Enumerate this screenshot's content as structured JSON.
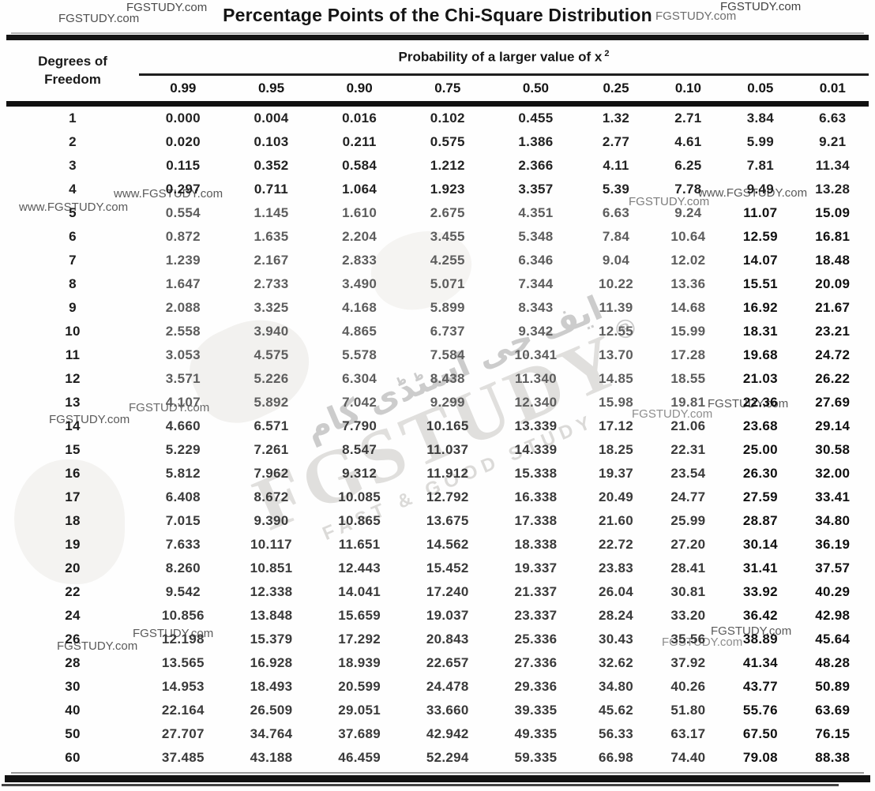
{
  "title": "Percentage Points of the Chi-Square Distribution",
  "table": {
    "row_header_line1": "Degrees of",
    "row_header_line2": "Freedom",
    "group_header": "Probability of a larger value of x",
    "group_header_sup": "2",
    "columns": [
      "0.99",
      "0.95",
      "0.90",
      "0.75",
      "0.50",
      "0.25",
      "0.10",
      "0.05",
      "0.01"
    ],
    "rows": [
      {
        "df": "1",
        "values": [
          "0.000",
          "0.004",
          "0.016",
          "0.102",
          "0.455",
          "1.32",
          "2.71",
          "3.84",
          "6.63"
        ]
      },
      {
        "df": "2",
        "values": [
          "0.020",
          "0.103",
          "0.211",
          "0.575",
          "1.386",
          "2.77",
          "4.61",
          "5.99",
          "9.21"
        ]
      },
      {
        "df": "3",
        "values": [
          "0.115",
          "0.352",
          "0.584",
          "1.212",
          "2.366",
          "4.11",
          "6.25",
          "7.81",
          "11.34"
        ]
      },
      {
        "df": "4",
        "values": [
          "0.297",
          "0.711",
          "1.064",
          "1.923",
          "3.357",
          "5.39",
          "7.78",
          "9.49",
          "13.28"
        ]
      },
      {
        "df": "5",
        "values": [
          "0.554",
          "1.145",
          "1.610",
          "2.675",
          "4.351",
          "6.63",
          "9.24",
          "11.07",
          "15.09"
        ]
      },
      {
        "df": "6",
        "values": [
          "0.872",
          "1.635",
          "2.204",
          "3.455",
          "5.348",
          "7.84",
          "10.64",
          "12.59",
          "16.81"
        ]
      },
      {
        "df": "7",
        "values": [
          "1.239",
          "2.167",
          "2.833",
          "4.255",
          "6.346",
          "9.04",
          "12.02",
          "14.07",
          "18.48"
        ]
      },
      {
        "df": "8",
        "values": [
          "1.647",
          "2.733",
          "3.490",
          "5.071",
          "7.344",
          "10.22",
          "13.36",
          "15.51",
          "20.09"
        ]
      },
      {
        "df": "9",
        "values": [
          "2.088",
          "3.325",
          "4.168",
          "5.899",
          "8.343",
          "11.39",
          "14.68",
          "16.92",
          "21.67"
        ]
      },
      {
        "df": "10",
        "values": [
          "2.558",
          "3.940",
          "4.865",
          "6.737",
          "9.342",
          "12.55",
          "15.99",
          "18.31",
          "23.21"
        ]
      },
      {
        "df": "11",
        "values": [
          "3.053",
          "4.575",
          "5.578",
          "7.584",
          "10.341",
          "13.70",
          "17.28",
          "19.68",
          "24.72"
        ]
      },
      {
        "df": "12",
        "values": [
          "3.571",
          "5.226",
          "6.304",
          "8.438",
          "11.340",
          "14.85",
          "18.55",
          "21.03",
          "26.22"
        ]
      },
      {
        "df": "13",
        "values": [
          "4.107",
          "5.892",
          "7.042",
          "9.299",
          "12.340",
          "15.98",
          "19.81",
          "22.36",
          "27.69"
        ]
      },
      {
        "df": "14",
        "values": [
          "4.660",
          "6.571",
          "7.790",
          "10.165",
          "13.339",
          "17.12",
          "21.06",
          "23.68",
          "29.14"
        ]
      },
      {
        "df": "15",
        "values": [
          "5.229",
          "7.261",
          "8.547",
          "11.037",
          "14.339",
          "18.25",
          "22.31",
          "25.00",
          "30.58"
        ]
      },
      {
        "df": "16",
        "values": [
          "5.812",
          "7.962",
          "9.312",
          "11.912",
          "15.338",
          "19.37",
          "23.54",
          "26.30",
          "32.00"
        ]
      },
      {
        "df": "17",
        "values": [
          "6.408",
          "8.672",
          "10.085",
          "12.792",
          "16.338",
          "20.49",
          "24.77",
          "27.59",
          "33.41"
        ]
      },
      {
        "df": "18",
        "values": [
          "7.015",
          "9.390",
          "10.865",
          "13.675",
          "17.338",
          "21.60",
          "25.99",
          "28.87",
          "34.80"
        ]
      },
      {
        "df": "19",
        "values": [
          "7.633",
          "10.117",
          "11.651",
          "14.562",
          "18.338",
          "22.72",
          "27.20",
          "30.14",
          "36.19"
        ]
      },
      {
        "df": "20",
        "values": [
          "8.260",
          "10.851",
          "12.443",
          "15.452",
          "19.337",
          "23.83",
          "28.41",
          "31.41",
          "37.57"
        ]
      },
      {
        "df": "22",
        "values": [
          "9.542",
          "12.338",
          "14.041",
          "17.240",
          "21.337",
          "26.04",
          "30.81",
          "33.92",
          "40.29"
        ]
      },
      {
        "df": "24",
        "values": [
          "10.856",
          "13.848",
          "15.659",
          "19.037",
          "23.337",
          "28.24",
          "33.20",
          "36.42",
          "42.98"
        ]
      },
      {
        "df": "26",
        "values": [
          "12.198",
          "15.379",
          "17.292",
          "20.843",
          "25.336",
          "30.43",
          "35.56",
          "38.89",
          "45.64"
        ]
      },
      {
        "df": "28",
        "values": [
          "13.565",
          "16.928",
          "18.939",
          "22.657",
          "27.336",
          "32.62",
          "37.92",
          "41.34",
          "48.28"
        ]
      },
      {
        "df": "30",
        "values": [
          "14.953",
          "18.493",
          "20.599",
          "24.478",
          "29.336",
          "34.80",
          "40.26",
          "43.77",
          "50.89"
        ]
      },
      {
        "df": "40",
        "values": [
          "22.164",
          "26.509",
          "29.051",
          "33.660",
          "39.335",
          "45.62",
          "51.80",
          "55.76",
          "63.69"
        ]
      },
      {
        "df": "50",
        "values": [
          "27.707",
          "34.764",
          "37.689",
          "42.942",
          "49.335",
          "56.33",
          "63.17",
          "67.50",
          "76.15"
        ]
      },
      {
        "df": "60",
        "values": [
          "37.485",
          "43.188",
          "46.459",
          "52.294",
          "59.335",
          "66.98",
          "74.40",
          "79.08",
          "88.38"
        ]
      }
    ]
  },
  "watermarks": {
    "site": "FGSTUDY.com",
    "site_www": "www.FGSTUDY.com",
    "brand": "FGSTUDY",
    "registered": "®",
    "tagline": "FAST & GOOD STUDY",
    "urdu": "ایف جی اسٹڈی کام"
  }
}
